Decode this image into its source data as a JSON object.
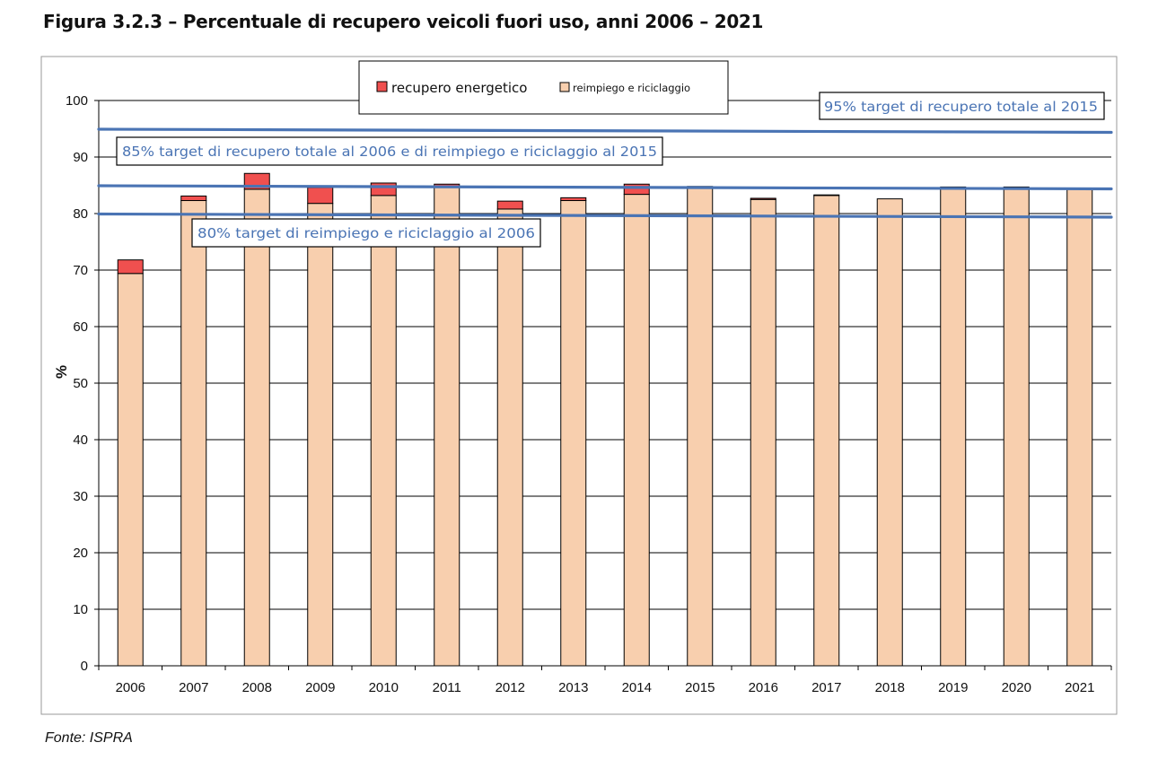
{
  "figure": {
    "title": "Figura 3.2.3 – Percentuale di recupero veicoli fuori uso, anni 2006 – 2021",
    "source": "Fonte: ISPRA"
  },
  "chart_data": {
    "type": "bar",
    "stacked": true,
    "categories": [
      "2006",
      "2007",
      "2008",
      "2009",
      "2010",
      "2011",
      "2012",
      "2013",
      "2014",
      "2015",
      "2016",
      "2017",
      "2018",
      "2019",
      "2020",
      "2021"
    ],
    "series": [
      {
        "name": "reimpiego e riciclaggio",
        "color": "#f8cfae",
        "values": [
          69.4,
          82.3,
          84.3,
          81.8,
          83.2,
          84.8,
          80.8,
          82.3,
          83.4,
          84.7,
          82.5,
          83.2,
          82.6,
          84.7,
          84.7,
          84.3
        ]
      },
      {
        "name": "recupero energetico",
        "color": "#f0504f",
        "values": [
          2.4,
          0.8,
          2.8,
          2.8,
          2.2,
          0.4,
          1.4,
          0.5,
          1.8,
          0.1,
          0.2,
          0.1,
          0.0,
          0.0,
          0.0,
          0.0
        ]
      }
    ],
    "ylabel": "%",
    "xlabel": "",
    "ylim": [
      0,
      100
    ],
    "yticks": [
      0,
      10,
      20,
      30,
      40,
      50,
      60,
      70,
      80,
      90,
      100
    ],
    "grid": true,
    "legend_position": "top-center",
    "target_color": "#4a74b4",
    "annotations": [
      {
        "text": "95% target di recupero totale al 2015",
        "value": 95
      },
      {
        "text": "85% target di recupero totale al 2006 e di reimpiego e riciclaggio al 2015",
        "value": 85
      },
      {
        "text": "80% target di  reimpiego e riciclaggio al 2006",
        "value": 80
      }
    ]
  }
}
